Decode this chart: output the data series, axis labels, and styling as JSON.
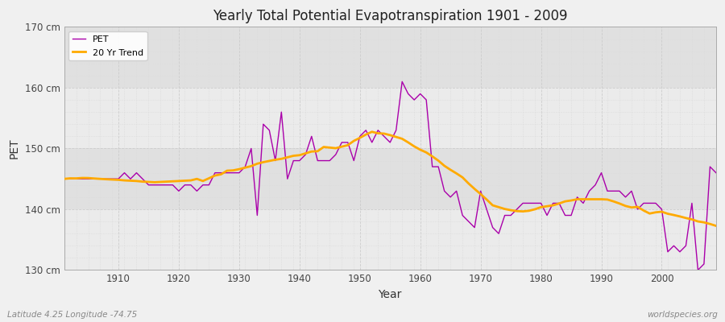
{
  "title": "Yearly Total Potential Evapotranspiration 1901 - 2009",
  "xlabel": "Year",
  "ylabel": "PET",
  "lat_lon_label": "Latitude 4.25 Longitude -74.75",
  "watermark": "worldspecies.org",
  "pet_color": "#aa00aa",
  "trend_color": "#ffaa00",
  "bg_color": "#f0f0f0",
  "plot_bg_color": "#e8e8e8",
  "band_color_light": "#ebebeb",
  "band_color_dark": "#e0e0e0",
  "ylim": [
    130,
    170
  ],
  "yticks": [
    130,
    140,
    150,
    160,
    170
  ],
  "ytick_labels": [
    "130 cm",
    "140 cm",
    "150 cm",
    "160 cm",
    "170 cm"
  ],
  "years": [
    1901,
    1902,
    1903,
    1904,
    1905,
    1906,
    1907,
    1908,
    1909,
    1910,
    1911,
    1912,
    1913,
    1914,
    1915,
    1916,
    1917,
    1918,
    1919,
    1920,
    1921,
    1922,
    1923,
    1924,
    1925,
    1926,
    1927,
    1928,
    1929,
    1930,
    1931,
    1932,
    1933,
    1934,
    1935,
    1936,
    1937,
    1938,
    1939,
    1940,
    1941,
    1942,
    1943,
    1944,
    1945,
    1946,
    1947,
    1948,
    1949,
    1950,
    1951,
    1952,
    1953,
    1954,
    1955,
    1956,
    1957,
    1958,
    1959,
    1960,
    1961,
    1962,
    1963,
    1964,
    1965,
    1966,
    1967,
    1968,
    1969,
    1970,
    1971,
    1972,
    1973,
    1974,
    1975,
    1976,
    1977,
    1978,
    1979,
    1980,
    1981,
    1982,
    1983,
    1984,
    1985,
    1986,
    1987,
    1988,
    1989,
    1990,
    1991,
    1992,
    1993,
    1994,
    1995,
    1996,
    1997,
    1998,
    1999,
    2000,
    2001,
    2002,
    2003,
    2004,
    2005,
    2006,
    2007,
    2008,
    2009
  ],
  "pet_values": [
    145,
    145,
    145,
    145,
    145,
    145,
    145,
    145,
    145,
    145,
    146,
    145,
    146,
    145,
    144,
    144,
    144,
    144,
    144,
    143,
    144,
    144,
    143,
    144,
    144,
    146,
    146,
    146,
    146,
    146,
    147,
    150,
    139,
    154,
    153,
    148,
    156,
    145,
    148,
    148,
    149,
    152,
    148,
    148,
    148,
    149,
    151,
    151,
    148,
    152,
    153,
    151,
    153,
    152,
    151,
    153,
    161,
    159,
    158,
    159,
    158,
    147,
    147,
    143,
    142,
    143,
    139,
    138,
    137,
    143,
    140,
    137,
    136,
    139,
    139,
    140,
    141,
    141,
    141,
    141,
    139,
    141,
    141,
    139,
    139,
    142,
    141,
    143,
    144,
    146,
    143,
    143,
    143,
    142,
    143,
    140,
    141,
    141,
    141,
    140,
    133,
    134,
    133,
    134,
    141,
    130,
    131,
    147,
    146
  ],
  "trend_window": 20
}
